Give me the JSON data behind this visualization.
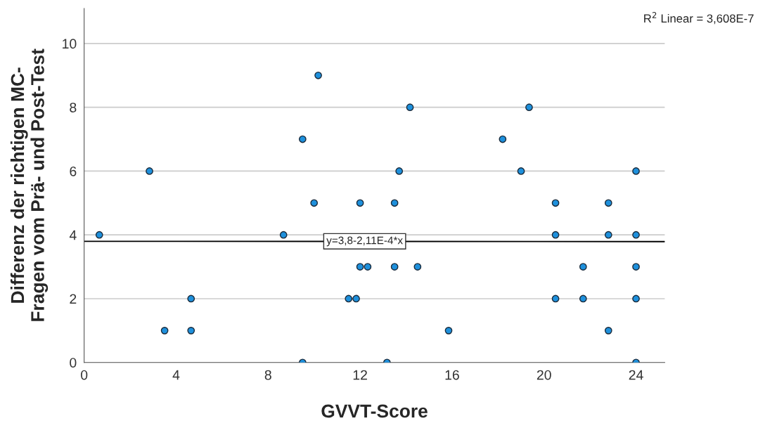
{
  "chart_data": {
    "type": "scatter",
    "xlabel": "GVVT-Score",
    "ylabel": "Differenz der richtigen MC-\nFragen vom Prä- und Post-Test",
    "series": [
      {
        "color": "#1e90dc",
        "marker": "circle",
        "x": [
          0.66,
          2.84,
          3.5,
          4.65,
          4.65,
          8.67,
          9.5,
          9.5,
          10.0,
          10.18,
          11.5,
          11.83,
          12,
          12,
          12.33,
          13.17,
          13.5,
          13.5,
          13.7,
          14.17,
          14.5,
          15.85,
          18.2,
          19.0,
          19.35,
          20.5,
          20.5,
          20.5,
          21.7,
          21.7,
          22.8,
          22.8,
          22.8,
          24,
          24,
          24,
          24,
          24
        ],
        "values": [
          4,
          6,
          1,
          2,
          1,
          4,
          7,
          0,
          5,
          9,
          2,
          2,
          5,
          3,
          3,
          0,
          5,
          3,
          6,
          8,
          3,
          1,
          7,
          6,
          8,
          5,
          4,
          2,
          3,
          2,
          5,
          4,
          1,
          6,
          4,
          3,
          2,
          0
        ]
      },
      {
        "type": "line",
        "color": "#000000",
        "x": [
          0,
          25.25
        ],
        "values": [
          3.8,
          3.79
        ]
      }
    ],
    "annotations": [
      {
        "text": "y=3,8-2,11E-4*x",
        "x": 12.2,
        "y": 3.8
      },
      "R$^{2}$ Linear = 3,608E-7"
    ],
    "xlim": [
      0,
      25.25
    ],
    "ylim": [
      0,
      11.1
    ],
    "xticks": [
      0,
      4,
      8,
      12,
      16,
      20,
      24
    ],
    "yticks": [
      0,
      2,
      4,
      6,
      8,
      10
    ],
    "grid": "y",
    "legend": false
  }
}
